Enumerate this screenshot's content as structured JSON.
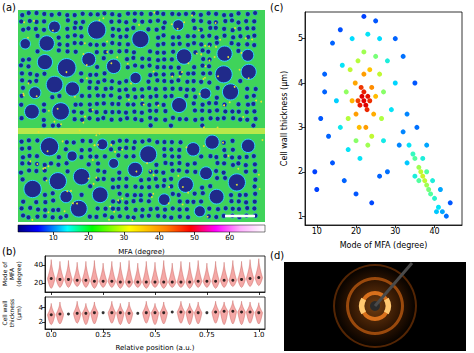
{
  "chart_data": [
    {
      "type": "image",
      "panel": "(a)",
      "colorbar": {
        "label": "MFA (degree)",
        "range": [
          0,
          70
        ],
        "ticks": [
          10,
          20,
          30,
          40,
          50,
          60
        ]
      }
    },
    {
      "type": "violin",
      "panel": "(b)",
      "color": "#f4a8a6",
      "x_label": "Relative position (a.u.)",
      "x": [
        0,
        0.042,
        0.083,
        0.125,
        0.167,
        0.208,
        0.25,
        0.292,
        0.333,
        0.375,
        0.417,
        0.458,
        0.5,
        0.542,
        0.583,
        0.625,
        0.667,
        0.708,
        0.75,
        0.792,
        0.833,
        0.875,
        0.917,
        0.958,
        1
      ],
      "xlim": [
        -0.03,
        1.03
      ],
      "xticks": [
        {
          "value": 0,
          "label": "0.0"
        },
        0.25,
        0.5,
        0.75,
        {
          "value": 1,
          "label": "1.0"
        }
      ],
      "panels": [
        {
          "y_label": "Mode of MFA (degree)",
          "ylim": [
            10,
            50
          ],
          "yticks": [
            20,
            40
          ],
          "median": [
            25,
            24,
            24,
            23,
            23,
            22,
            22,
            22,
            21,
            21,
            21,
            21,
            21,
            21,
            21,
            21,
            21,
            22,
            22,
            22,
            23,
            23,
            24,
            25,
            26
          ],
          "min": [
            14,
            15,
            15,
            16,
            15,
            14,
            15,
            15,
            14,
            15,
            15,
            14,
            15,
            14,
            15,
            15,
            14,
            15,
            15,
            14,
            15,
            16,
            15,
            16,
            17
          ],
          "max": [
            46,
            44,
            45,
            43,
            44,
            45,
            42,
            44,
            43,
            45,
            42,
            44,
            43,
            45,
            42,
            44,
            43,
            45,
            42,
            44,
            43,
            45,
            44,
            46,
            47
          ]
        },
        {
          "y_label": "Cell wall thickness (μm)",
          "ylim": [
            1,
            5.5
          ],
          "yticks": [
            2,
            4
          ],
          "median": [
            3.0,
            3.1,
            3.1,
            3.2,
            3.2,
            3.3,
            3.3,
            3.3,
            3.3,
            3.2,
            3.2,
            3.3,
            3.3,
            3.3,
            3.4,
            3.4,
            3.4,
            3.3,
            3.3,
            3.4,
            3.5,
            3.5,
            3.4,
            3.4,
            3.3
          ],
          "min": [
            1.6,
            1.7,
            1.5,
            1.8,
            1.6,
            1.7,
            1.5,
            1.8,
            1.6,
            1.7,
            1.5,
            1.8,
            1.6,
            1.7,
            1.5,
            1.8,
            1.6,
            1.7,
            1.5,
            1.8,
            1.6,
            1.7,
            1.6,
            1.8,
            1.7
          ],
          "max": [
            4.6,
            4.8,
            4.7,
            4.9,
            4.6,
            4.8,
            4.7,
            4.9,
            4.6,
            4.8,
            4.7,
            4.9,
            4.6,
            4.8,
            4.7,
            4.9,
            4.6,
            4.8,
            4.7,
            4.9,
            4.8,
            5.0,
            4.9,
            4.8,
            4.7
          ]
        }
      ]
    },
    {
      "type": "scatter",
      "panel": "(c)",
      "x_label": "Mode of MFA (degree)",
      "y_label": "Cell wall thickness (μm)",
      "xlim": [
        7,
        47
      ],
      "xticks": [
        10,
        20,
        30,
        40
      ],
      "ylim": [
        0.8,
        5.6
      ],
      "yticks": [
        1,
        2,
        3,
        4,
        5
      ],
      "density_range": [
        0,
        1
      ],
      "x": [
        13,
        11,
        9.5,
        12,
        14,
        10,
        17,
        20,
        25,
        22,
        30,
        32,
        33,
        31,
        28,
        14,
        16,
        35,
        12,
        26,
        24,
        35.5,
        44,
        43,
        32,
        42,
        41.5,
        38,
        33,
        40.5,
        33.5,
        41,
        39.5,
        35,
        37,
        40,
        34.5,
        35,
        39,
        36,
        38,
        38.5,
        38,
        36,
        36.5,
        37.5,
        37,
        28,
        16,
        29,
        16.5,
        23,
        21,
        27,
        19,
        30,
        15,
        26,
        18,
        26,
        18,
        26.5,
        18.5,
        22,
        23,
        27,
        17.5,
        25,
        20,
        24,
        20.5,
        24,
        20,
        24.5,
        19.8,
        22,
        22.5,
        25,
        19,
        23.5,
        20.8,
        22,
        21.5,
        22.5,
        23,
        21,
        22,
        22.8,
        21.3,
        23.5,
        20.5
      ],
      "y": [
        2.8,
        3.2,
        2.0,
        4.2,
        4.9,
        1.6,
        1.8,
        1.5,
        5.4,
        5.5,
        5.0,
        4.6,
        3.3,
        2.6,
        2.0,
        2.2,
        5.2,
        4.0,
        3.8,
        1.9,
        1.3,
        3.0,
        1.3,
        1.0,
        2.9,
        1.1,
        1.6,
        2.6,
        2.2,
        1.1,
        2.6,
        1.2,
        1.8,
        1.9,
        2.3,
        1.4,
        2.4,
        2.3,
        1.5,
        1.8,
        2.0,
        1.6,
        1.7,
        2.1,
        2.0,
        1.8,
        1.9,
        4.5,
        3.0,
        3.4,
        4.4,
        5.1,
        2.3,
        2.7,
        5.0,
        4.0,
        3.6,
        5.0,
        2.5,
        4.2,
        3.2,
        3.2,
        4.3,
        4.7,
        2.6,
        3.8,
        3.8,
        4.6,
        2.7,
        2.8,
        4.5,
        3.9,
        3.3,
        3.3,
        4.0,
        4.2,
        3.0,
        3.7,
        3.6,
        4.3,
        3.0,
        3.6,
        3.7,
        3.5,
        3.7,
        3.5,
        3.8,
        3.4,
        3.9,
        3.6,
        3.6
      ],
      "density": [
        0.1,
        0.08,
        0.05,
        0.1,
        0.1,
        0.05,
        0.1,
        0.08,
        0.08,
        0.05,
        0.1,
        0.12,
        0.15,
        0.15,
        0.12,
        0.08,
        0.07,
        0.08,
        0.1,
        0.1,
        0.06,
        0.12,
        0.08,
        0.12,
        0.15,
        0.2,
        0.2,
        0.2,
        0.25,
        0.25,
        0.3,
        0.3,
        0.35,
        0.35,
        0.35,
        0.38,
        0.4,
        0.45,
        0.45,
        0.45,
        0.45,
        0.5,
        0.55,
        0.55,
        0.6,
        0.6,
        0.62,
        0.35,
        0.32,
        0.3,
        0.3,
        0.3,
        0.3,
        0.33,
        0.28,
        0.27,
        0.26,
        0.28,
        0.3,
        0.6,
        0.58,
        0.57,
        0.6,
        0.55,
        0.55,
        0.52,
        0.53,
        0.5,
        0.52,
        0.6,
        0.58,
        0.82,
        0.8,
        0.78,
        0.79,
        0.8,
        0.8,
        0.76,
        0.77,
        0.75,
        0.76,
        1,
        1,
        1,
        0.98,
        0.97,
        0.96,
        0.95,
        0.93,
        0.94,
        0.92
      ]
    },
    {
      "type": "image",
      "panel": "(d)"
    }
  ]
}
